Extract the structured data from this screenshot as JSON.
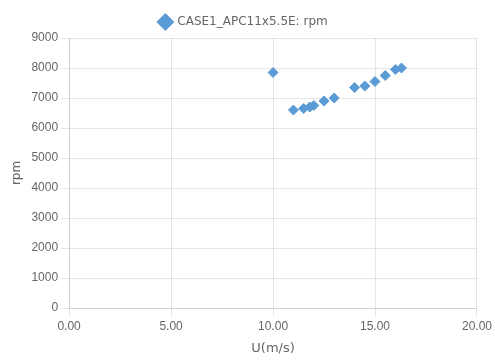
{
  "chart_data": {
    "type": "scatter",
    "x_label": "U(m/s)",
    "y_label": "rpm",
    "x": [
      10.0,
      11.0,
      11.5,
      11.8,
      12.0,
      12.5,
      13.0,
      14.0,
      14.5,
      15.0,
      15.5,
      16.0,
      16.3
    ],
    "series": [
      {
        "name": "CASE1_APC11x5.5E: rpm",
        "color": "#5B9BD5",
        "marker": "diamond",
        "values": [
          7850,
          6600,
          6650,
          6700,
          6750,
          6900,
          7000,
          7350,
          7400,
          7550,
          7750,
          7950,
          8000
        ]
      }
    ],
    "xlim": [
      0.0,
      20.0
    ],
    "ylim": [
      0,
      9000
    ],
    "xticks": [
      {
        "value": 0.0,
        "label": "0.00"
      },
      {
        "value": 5.0,
        "label": "5.00"
      },
      {
        "value": 10.0,
        "label": "10.00"
      },
      {
        "value": 15.0,
        "label": "15.00"
      },
      {
        "value": 20.0,
        "label": "20.00"
      }
    ],
    "yticks": [
      0,
      1000,
      2000,
      3000,
      4000,
      5000,
      6000,
      7000,
      8000,
      9000
    ],
    "grid": true,
    "legend": "top"
  }
}
